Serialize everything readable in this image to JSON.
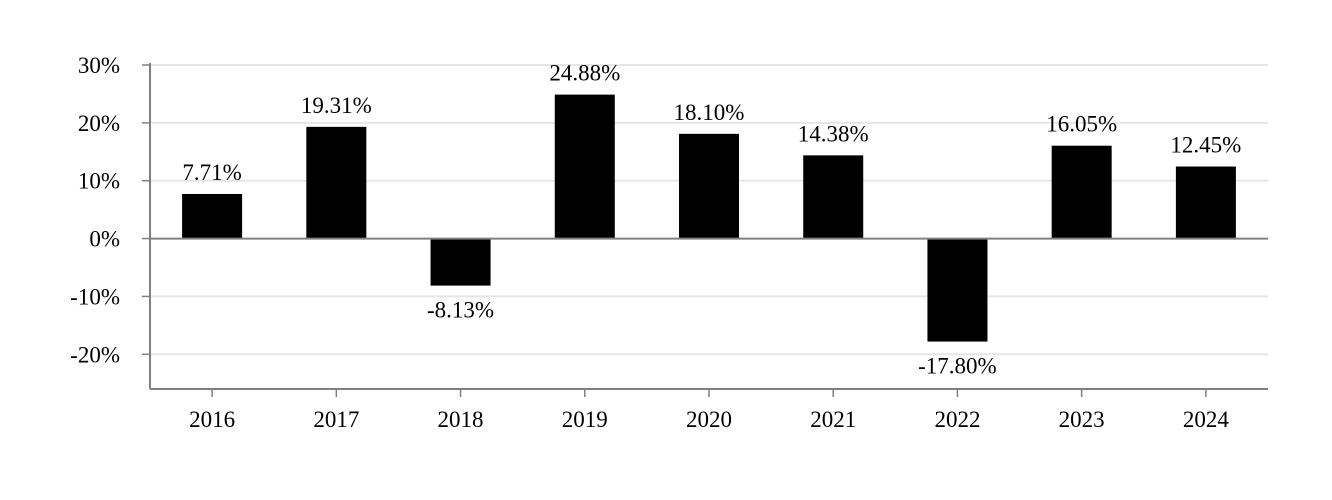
{
  "chart_data": {
    "type": "bar",
    "categories": [
      "2016",
      "2017",
      "2018",
      "2019",
      "2020",
      "2021",
      "2022",
      "2023",
      "2024"
    ],
    "values": [
      7.71,
      19.31,
      -8.13,
      24.88,
      18.1,
      14.38,
      -17.8,
      16.05,
      12.45
    ],
    "data_labels": [
      "7.71%",
      "19.31%",
      "-8.13%",
      "24.88%",
      "18.10%",
      "14.38%",
      "-17.80%",
      "16.05%",
      "12.45%"
    ],
    "ylim": [
      -26,
      30
    ],
    "yticks": [
      30,
      20,
      10,
      0,
      -10,
      -20
    ],
    "ytick_labels": [
      "30%",
      "20%",
      "10%",
      "0%",
      "-10%",
      "-20%"
    ],
    "title": "",
    "xlabel": "",
    "ylabel": "",
    "grid": true,
    "legend": "none",
    "colors": {
      "bar": "#000000",
      "grid": "#e6e6e6",
      "axis": "#808080",
      "text": "#000000"
    }
  }
}
